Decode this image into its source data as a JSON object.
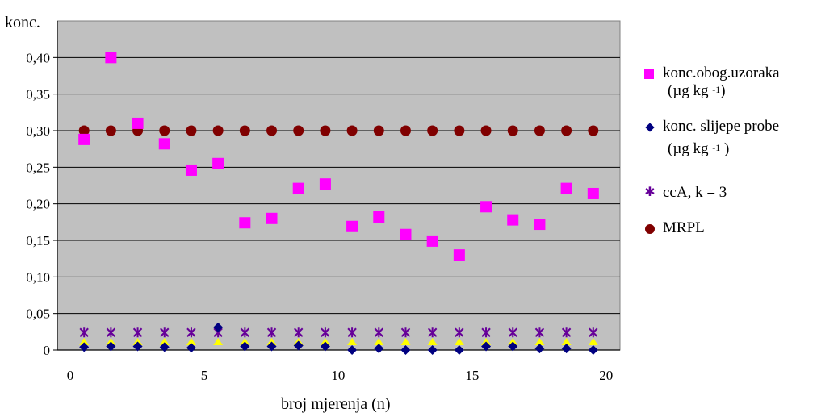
{
  "chart_data": {
    "type": "scatter",
    "ylabel": "konc.",
    "xlabel": "broj mjerenja (n)",
    "xlim": [
      0,
      21
    ],
    "ylim": [
      0,
      0.45
    ],
    "x_ticks": [
      {
        "value": 0,
        "label": "0"
      },
      {
        "value": 5,
        "label": "5"
      },
      {
        "value": 10,
        "label": "10"
      },
      {
        "value": 15,
        "label": "15"
      },
      {
        "value": 20,
        "label": "20"
      }
    ],
    "y_ticks": [
      {
        "value": 0,
        "label": "0"
      },
      {
        "value": 0.05,
        "label": "0,05"
      },
      {
        "value": 0.1,
        "label": "0,10"
      },
      {
        "value": 0.15,
        "label": "0,15"
      },
      {
        "value": 0.2,
        "label": "0,20"
      },
      {
        "value": 0.25,
        "label": "0,25"
      },
      {
        "value": 0.3,
        "label": "0,30"
      },
      {
        "value": 0.35,
        "label": "0,35"
      },
      {
        "value": 0.4,
        "label": "0,40"
      }
    ],
    "grid": "horizontal",
    "plot_background": "#c0c0c0",
    "legend_position": "right",
    "x": [
      1,
      2,
      3,
      4,
      5,
      6,
      7,
      8,
      9,
      10,
      11,
      12,
      13,
      14,
      15,
      16,
      17,
      18,
      19,
      20
    ],
    "series": [
      {
        "key": "yellow",
        "marker": "triangle",
        "color": "#ffff00",
        "values": [
          0.011,
          0.011,
          0.011,
          0.011,
          0.011,
          0.011,
          0.011,
          0.011,
          0.011,
          0.011,
          0.011,
          0.011,
          0.011,
          0.011,
          0.011,
          0.011,
          0.011,
          0.011,
          0.011,
          0.011
        ]
      },
      {
        "key": "cca",
        "name": "ccA, k = 3",
        "marker": "star",
        "color": "#660099",
        "values": [
          0.024,
          0.024,
          0.024,
          0.024,
          0.024,
          0.024,
          0.024,
          0.024,
          0.024,
          0.024,
          0.024,
          0.024,
          0.024,
          0.024,
          0.024,
          0.024,
          0.024,
          0.024,
          0.024,
          0.024
        ]
      },
      {
        "key": "blank",
        "name": "konc. slijepe probe",
        "unit": "(µg kg",
        "unit_exp": "-1",
        "unit_close": " )",
        "marker": "diamond",
        "color": "#000080",
        "values": [
          0.004,
          0.005,
          0.005,
          0.004,
          0.003,
          0.031,
          0.005,
          0.005,
          0.006,
          0.005,
          0.0,
          0.002,
          0.0,
          0.0,
          0.0,
          0.005,
          0.005,
          0.002,
          0.002,
          0.0
        ]
      },
      {
        "key": "mrpl",
        "name": "MRPL",
        "marker": "circle",
        "color": "#800000",
        "values": [
          0.3,
          0.3,
          0.3,
          0.3,
          0.3,
          0.3,
          0.3,
          0.3,
          0.3,
          0.3,
          0.3,
          0.3,
          0.3,
          0.3,
          0.3,
          0.3,
          0.3,
          0.3,
          0.3,
          0.3
        ]
      },
      {
        "key": "spiked",
        "name": "konc.obog.uzoraka",
        "unit": "(µg kg",
        "unit_exp": "-1",
        "unit_close": ")",
        "marker": "square",
        "color": "#ff00ff",
        "values": [
          0.288,
          0.4,
          0.31,
          0.282,
          0.246,
          0.255,
          0.174,
          0.18,
          0.221,
          0.227,
          0.169,
          0.182,
          0.158,
          0.149,
          0.13,
          0.196,
          0.178,
          0.172,
          0.221,
          0.214
        ]
      }
    ]
  }
}
